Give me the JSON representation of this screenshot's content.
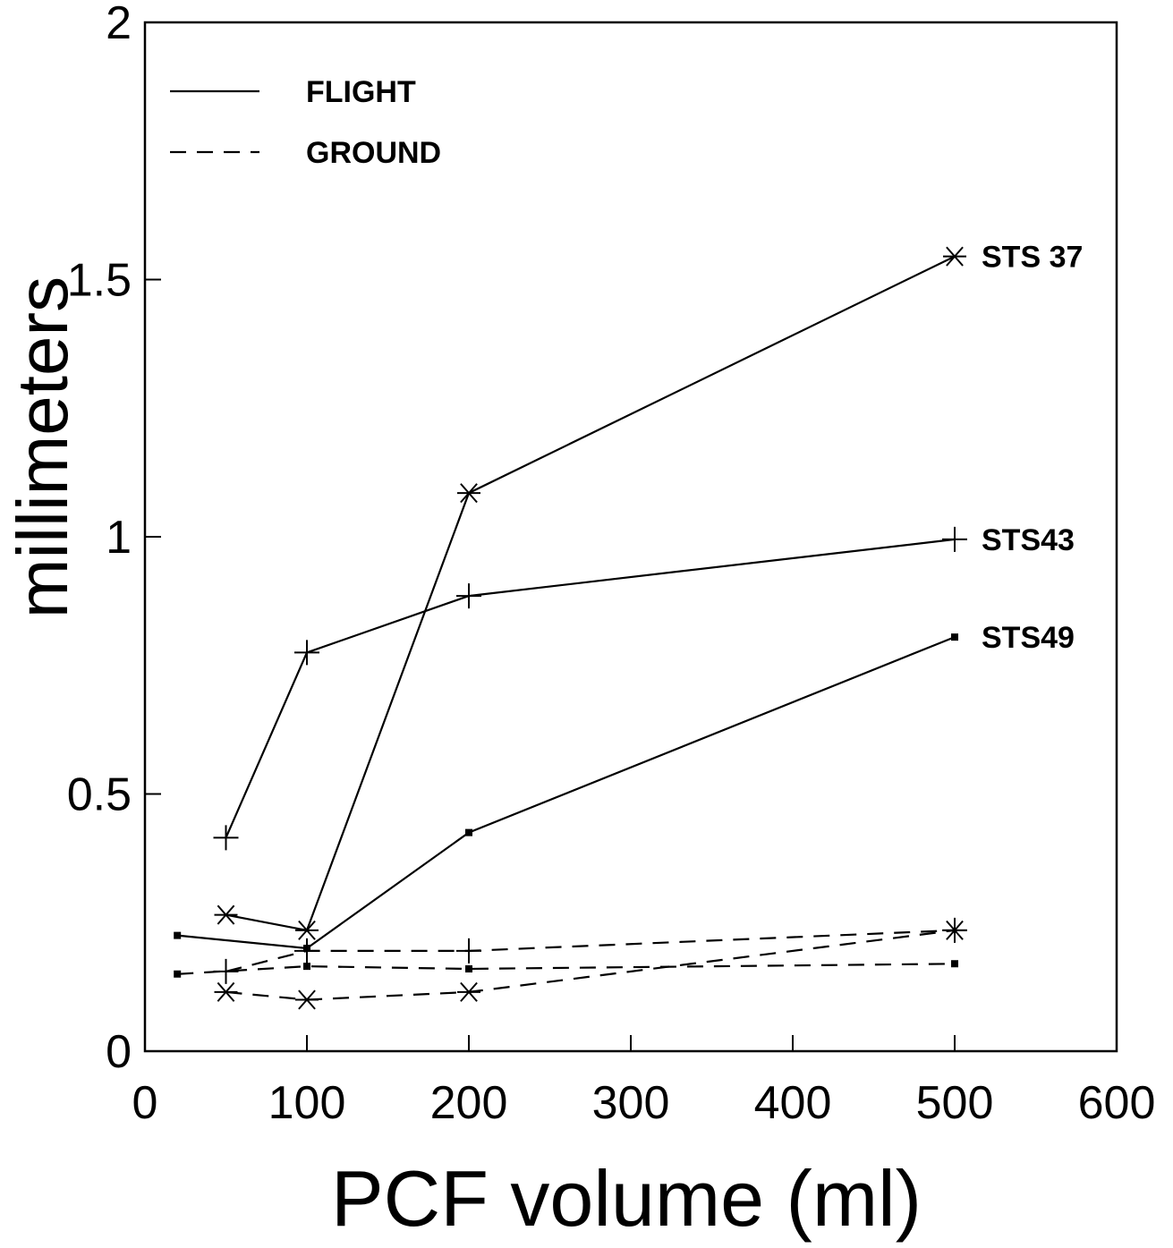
{
  "chart_data": {
    "type": "line",
    "title": "",
    "xlabel": "PCF volume (ml)",
    "ylabel": "millimeters",
    "xlim": [
      0,
      600
    ],
    "ylim": [
      0,
      2
    ],
    "x_ticks": [
      0,
      100,
      200,
      300,
      400,
      500,
      600
    ],
    "x_tick_labels": [
      "0",
      "100",
      "200",
      "300",
      "400",
      "500",
      "600"
    ],
    "y_ticks": [
      0,
      0.5,
      1,
      1.5,
      2
    ],
    "y_tick_labels": [
      "0",
      "0.5",
      "1",
      "1.5",
      "2"
    ],
    "grid": false,
    "legend": {
      "placement": "top-left",
      "entries": [
        {
          "label": "FLIGHT",
          "style": "solid"
        },
        {
          "label": "GROUND",
          "style": "dashed"
        }
      ]
    },
    "series": [
      {
        "name": "STS 37",
        "condition": "FLIGHT",
        "style": "solid",
        "marker": "asterisk",
        "x": [
          50,
          100,
          200,
          500
        ],
        "y": [
          0.265,
          0.235,
          1.085,
          1.545
        ]
      },
      {
        "name": "STS43",
        "condition": "FLIGHT",
        "style": "solid",
        "marker": "plus",
        "x": [
          50,
          100,
          200,
          500
        ],
        "y": [
          0.415,
          0.775,
          0.885,
          0.995
        ]
      },
      {
        "name": "STS49",
        "condition": "FLIGHT",
        "style": "solid",
        "marker": "square",
        "x": [
          20,
          100,
          200,
          500
        ],
        "y": [
          0.225,
          0.2,
          0.425,
          0.805
        ]
      },
      {
        "name": "STS 37",
        "condition": "GROUND",
        "style": "dashed",
        "marker": "asterisk",
        "x": [
          50,
          100,
          200,
          500
        ],
        "y": [
          0.115,
          0.1,
          0.115,
          0.235
        ]
      },
      {
        "name": "STS43",
        "condition": "GROUND",
        "style": "dashed",
        "marker": "plus",
        "x": [
          50,
          100,
          200,
          500
        ],
        "y": [
          0.155,
          0.195,
          0.195,
          0.235
        ]
      },
      {
        "name": "STS49",
        "condition": "GROUND",
        "style": "dashed",
        "marker": "square",
        "x": [
          20,
          100,
          200,
          500
        ],
        "y": [
          0.15,
          0.165,
          0.16,
          0.17
        ]
      }
    ],
    "series_labels": [
      {
        "text": "STS 37",
        "series_index": 0
      },
      {
        "text": "STS43",
        "series_index": 1
      },
      {
        "text": "STS49",
        "series_index": 2
      }
    ]
  }
}
